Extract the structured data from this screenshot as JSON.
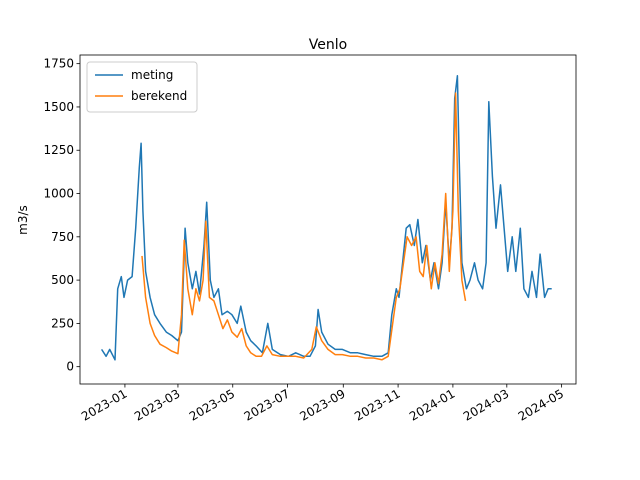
{
  "chart_data": {
    "type": "line",
    "title": "Venlo",
    "y_label": "m3/s",
    "xlim": [
      19308,
      19860
    ],
    "ylim": [
      -100,
      1800
    ],
    "xticks": [
      {
        "value": 19358,
        "label": "2023-01"
      },
      {
        "value": 19417,
        "label": "2023-03"
      },
      {
        "value": 19478,
        "label": "2023-05"
      },
      {
        "value": 19539,
        "label": "2023-07"
      },
      {
        "value": 19601,
        "label": "2023-09"
      },
      {
        "value": 19662,
        "label": "2023-11"
      },
      {
        "value": 19723,
        "label": "2024-01"
      },
      {
        "value": 19783,
        "label": "2024-03"
      },
      {
        "value": 19844,
        "label": "2024-05"
      }
    ],
    "yticks": [
      0,
      250,
      500,
      750,
      1000,
      1250,
      1500,
      1750
    ],
    "grid": false,
    "legend": "upper left",
    "series": [
      {
        "name": "meting",
        "color": "#1f77b4",
        "x": [
          19332,
          19337,
          19341,
          19347,
          19350,
          19354,
          19357,
          19361,
          19366,
          19370,
          19374,
          19376,
          19378,
          19381,
          19386,
          19391,
          19397,
          19404,
          19410,
          19417,
          19421,
          19425,
          19428,
          19433,
          19437,
          19441,
          19446,
          19449,
          19453,
          19457,
          19462,
          19466,
          19472,
          19477,
          19483,
          19487,
          19493,
          19498,
          19504,
          19511,
          19517,
          19522,
          19531,
          19540,
          19548,
          19557,
          19564,
          19570,
          19573,
          19577,
          19584,
          19592,
          19600,
          19609,
          19617,
          19626,
          19635,
          19644,
          19651,
          19655,
          19660,
          19663,
          19668,
          19671,
          19675,
          19680,
          19684,
          19689,
          19693,
          19698,
          19702,
          19707,
          19711,
          19715,
          19719,
          19722,
          19725,
          19728,
          19730,
          19733,
          19738,
          19742,
          19747,
          19751,
          19756,
          19760,
          19763,
          19767,
          19771,
          19776,
          19780,
          19784,
          19789,
          19793,
          19798,
          19802,
          19807,
          19811,
          19816,
          19820,
          19825,
          19829,
          19833
        ],
        "values": [
          100,
          60,
          100,
          40,
          450,
          520,
          400,
          500,
          520,
          800,
          1150,
          1290,
          900,
          550,
          400,
          300,
          250,
          200,
          180,
          150,
          200,
          800,
          600,
          450,
          550,
          420,
          700,
          950,
          500,
          400,
          450,
          300,
          320,
          300,
          250,
          350,
          200,
          150,
          120,
          80,
          250,
          100,
          70,
          60,
          80,
          60,
          60,
          120,
          330,
          200,
          130,
          100,
          100,
          80,
          80,
          70,
          60,
          60,
          80,
          300,
          450,
          400,
          650,
          800,
          820,
          700,
          850,
          600,
          700,
          500,
          600,
          450,
          600,
          950,
          600,
          800,
          1550,
          1680,
          1200,
          600,
          450,
          500,
          600,
          500,
          450,
          600,
          1530,
          1100,
          800,
          1050,
          800,
          550,
          750,
          550,
          800,
          450,
          400,
          550,
          400,
          650,
          400,
          450,
          450
        ]
      },
      {
        "name": "berekend",
        "color": "#ff7f0e",
        "x": [
          19377,
          19381,
          19386,
          19391,
          19397,
          19404,
          19410,
          19417,
          19421,
          19424,
          19428,
          19433,
          19437,
          19441,
          19445,
          19448,
          19452,
          19457,
          19462,
          19467,
          19472,
          19477,
          19483,
          19488,
          19493,
          19498,
          19504,
          19510,
          19516,
          19522,
          19531,
          19540,
          19548,
          19557,
          19566,
          19571,
          19577,
          19584,
          19592,
          19600,
          19609,
          19617,
          19626,
          19635,
          19644,
          19651,
          19656,
          19660,
          19664,
          19668,
          19672,
          19677,
          19682,
          19686,
          19690,
          19694,
          19699,
          19703,
          19707,
          19711,
          19715,
          19719,
          19723,
          19726,
          19729,
          19733,
          19737
        ],
        "values": [
          640,
          400,
          250,
          180,
          130,
          110,
          90,
          75,
          300,
          730,
          450,
          300,
          450,
          380,
          500,
          840,
          400,
          380,
          300,
          220,
          270,
          200,
          170,
          220,
          120,
          80,
          60,
          60,
          120,
          70,
          60,
          60,
          60,
          50,
          100,
          230,
          150,
          100,
          70,
          70,
          60,
          60,
          50,
          50,
          40,
          60,
          250,
          400,
          450,
          600,
          750,
          700,
          750,
          550,
          520,
          700,
          450,
          600,
          480,
          650,
          1000,
          550,
          900,
          1580,
          900,
          500,
          380
        ]
      }
    ]
  }
}
